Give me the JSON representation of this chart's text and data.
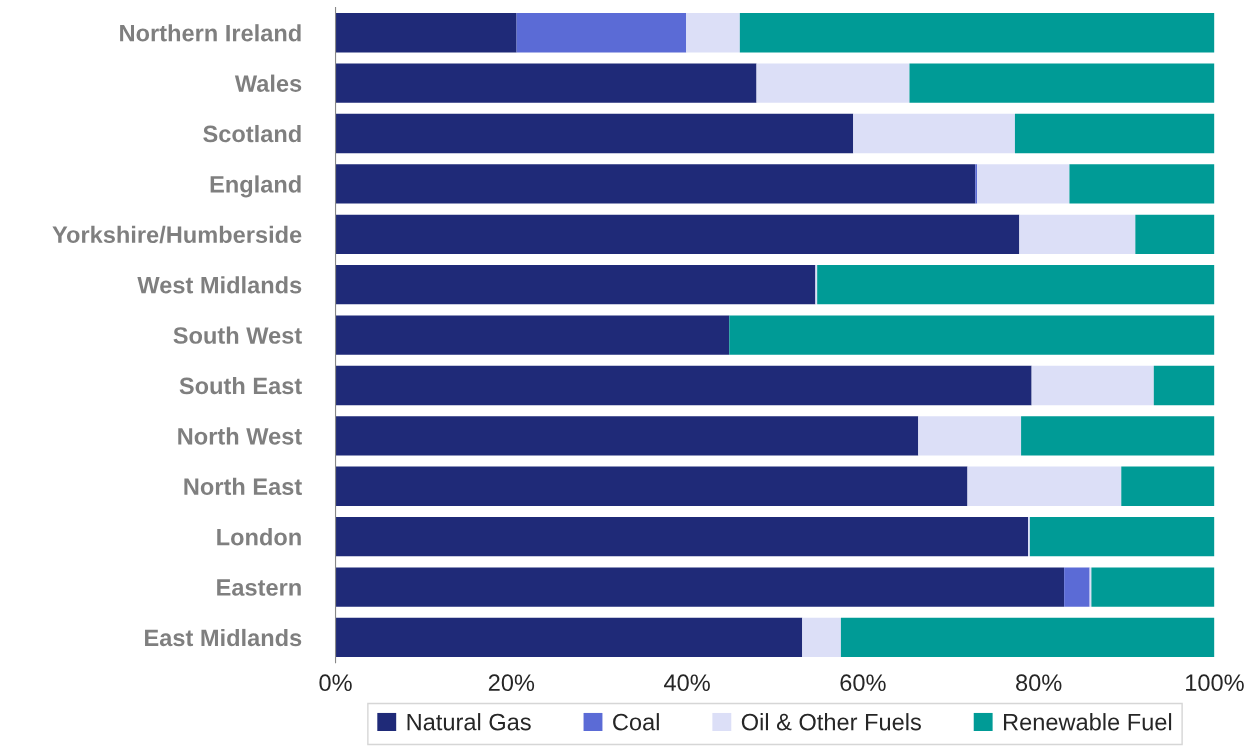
{
  "chart_data": {
    "type": "bar",
    "orientation": "horizontal",
    "stacked": true,
    "legend": "bottom",
    "grid": false,
    "categories": [
      "Northern Ireland",
      "Wales",
      "Scotland",
      "England",
      "Yorkshire/Humberside",
      "West Midlands",
      "South West",
      "South East",
      "North West",
      "North East",
      "London",
      "Eastern",
      "East Midlands"
    ],
    "xlim": [
      0,
      100
    ],
    "xticks": [
      {
        "value": 0,
        "label": "0%"
      },
      {
        "value": 20,
        "label": "20%"
      },
      {
        "value": 40,
        "label": "40%"
      },
      {
        "value": 60,
        "label": "60%"
      },
      {
        "value": 80,
        "label": "80%"
      },
      {
        "value": 100,
        "label": "100%"
      }
    ],
    "series": [
      {
        "name": "Natural Gas",
        "color": "#1f2a78",
        "values": [
          20.6,
          47.9,
          58.9,
          72.8,
          77.8,
          54.6,
          44.8,
          79.2,
          66.3,
          71.9,
          78.8,
          82.9,
          53.1
        ]
      },
      {
        "name": "Coal",
        "color": "#5b6bd6",
        "values": [
          19.3,
          null,
          null,
          0.2,
          null,
          null,
          null,
          null,
          null,
          null,
          null,
          2.9,
          null
        ]
      },
      {
        "name": "Oil & Other Fuels",
        "color": "#dcdff7",
        "values": [
          6.1,
          17.4,
          18.4,
          10.5,
          13.2,
          0.2,
          null,
          13.9,
          11.7,
          17.5,
          0.2,
          0.2,
          4.4
        ]
      },
      {
        "name": "Renewable Fuel",
        "color": "#009b96",
        "values": [
          54.0,
          34.7,
          22.7,
          16.5,
          9.0,
          45.2,
          55.2,
          6.9,
          22.0,
          10.6,
          21.0,
          14.0,
          42.5
        ]
      }
    ]
  }
}
